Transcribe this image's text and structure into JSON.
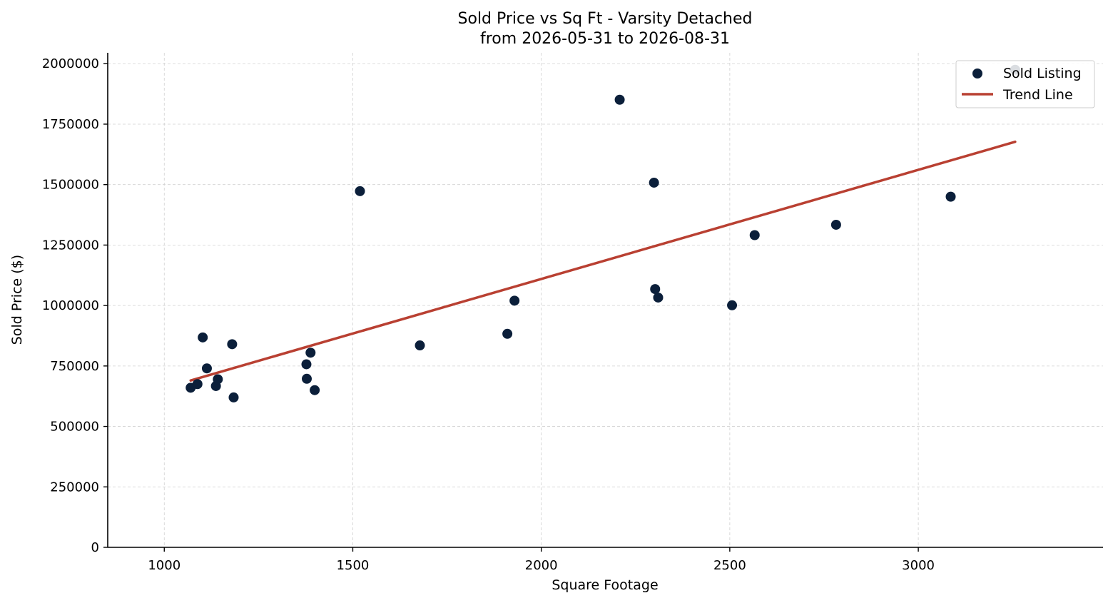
{
  "chart_data": {
    "type": "scatter",
    "title": "Sold Price vs Sq Ft - Varsity Detached",
    "subtitle": "from 2026-05-31 to 2026-08-31",
    "xlabel": "Square Footage",
    "ylabel": "Sold Price ($)",
    "xlim": [
      850,
      3490
    ],
    "ylim": [
      0,
      2045000
    ],
    "x_ticks": [
      1000,
      1500,
      2000,
      2500,
      3000
    ],
    "y_ticks": [
      0,
      250000,
      500000,
      750000,
      1000000,
      1250000,
      1500000,
      1750000,
      2000000
    ],
    "grid": true,
    "legend_position": "top-right",
    "series": [
      {
        "name": "Sold Listing",
        "kind": "scatter",
        "color": "#0b1f3a",
        "points": [
          [
            1070,
            660000
          ],
          [
            1088,
            675000
          ],
          [
            1102,
            868000
          ],
          [
            1113,
            740000
          ],
          [
            1137,
            667000
          ],
          [
            1142,
            695000
          ],
          [
            1180,
            840000
          ],
          [
            1184,
            620000
          ],
          [
            1377,
            757000
          ],
          [
            1378,
            697000
          ],
          [
            1388,
            805000
          ],
          [
            1399,
            650000
          ],
          [
            1519,
            1473000
          ],
          [
            1678,
            835000
          ],
          [
            1910,
            883000
          ],
          [
            1929,
            1020000
          ],
          [
            2208,
            1851000
          ],
          [
            2299,
            1508000
          ],
          [
            2302,
            1068000
          ],
          [
            2310,
            1033000
          ],
          [
            2506,
            1001000
          ],
          [
            2566,
            1291000
          ],
          [
            2782,
            1334000
          ],
          [
            3086,
            1450000
          ],
          [
            3257,
            1975000
          ]
        ]
      },
      {
        "name": "Trend Line",
        "kind": "line",
        "color": "#b94032",
        "points": [
          [
            1070,
            690000
          ],
          [
            3257,
            1677000
          ]
        ]
      }
    ]
  }
}
